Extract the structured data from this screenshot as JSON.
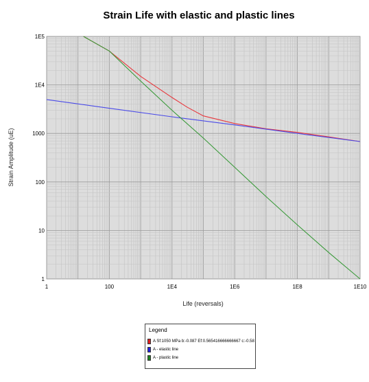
{
  "chart_data": {
    "type": "line",
    "title": "Strain Life with elastic and plastic lines",
    "xlabel": "Life (reversals)",
    "ylabel": "Strain Amplitude (uE)",
    "xscale": "log",
    "yscale": "log",
    "xlim": [
      1,
      10000000000
    ],
    "ylim": [
      1,
      100000
    ],
    "grid": true,
    "legend_placement": "bottom-center",
    "x_tick_labels": [
      "1",
      "100",
      "1E4",
      "1E6",
      "1E8",
      "1E10"
    ],
    "y_tick_labels": [
      "1",
      "10",
      "100",
      "1000",
      "1E4",
      "1E5"
    ],
    "series": [
      {
        "name": "A Sf:1050 MPa  b:-0.087 Ef:0.565416666666667 c:-0.58",
        "color": "#e8383d",
        "x": [
          15,
          100,
          1000,
          10000,
          30000,
          100000,
          1000000,
          10000000,
          100000000,
          1000000000,
          10000000000
        ],
        "y": [
          100000,
          50000,
          15000,
          5500,
          3500,
          2300,
          1600,
          1250,
          1050,
          850,
          680
        ]
      },
      {
        "name": "A - elastic line",
        "color": "#4a4ae8",
        "x": [
          1,
          100,
          10000,
          1000000,
          100000000,
          10000000000
        ],
        "y": [
          5000,
          3300,
          2200,
          1500,
          1000,
          680
        ]
      },
      {
        "name": "A - plastic line",
        "color": "#3a9a3a",
        "x": [
          15,
          100,
          1000,
          10000,
          100000,
          1000000,
          10000000,
          100000000,
          1000000000,
          10000000000
        ],
        "y": [
          100000,
          50000,
          12000,
          3000,
          800,
          200,
          50,
          13,
          3.5,
          1
        ]
      }
    ]
  },
  "legend": {
    "title": "Legend",
    "items": [
      {
        "label": "A Sf:1050 MPa  b:-0.087 Ef:0.565416666666667  c:-0.58",
        "color": "#e02020"
      },
      {
        "label": "A - elastic line",
        "color": "#2020e0"
      },
      {
        "label": "A - plastic line",
        "color": "#208020"
      }
    ]
  }
}
